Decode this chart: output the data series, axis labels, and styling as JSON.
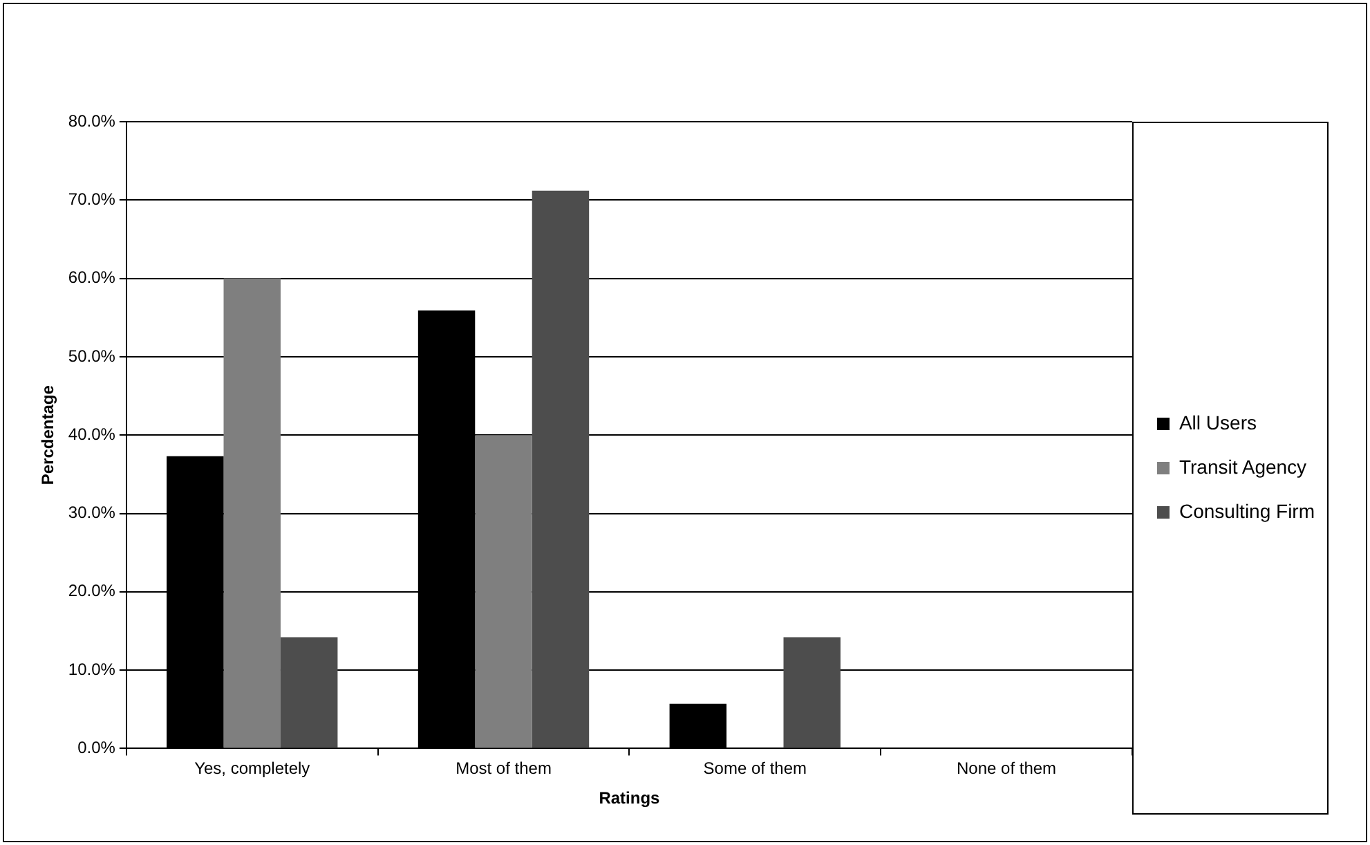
{
  "chart_data": {
    "type": "bar",
    "xlabel": "Ratings",
    "ylabel": "Percdentage",
    "categories": [
      "Yes, completely",
      "Most of them",
      "Some of them",
      "None of them"
    ],
    "series": [
      {
        "name": "All Users",
        "color": "#000000",
        "values": [
          37.3,
          55.9,
          5.7,
          0
        ]
      },
      {
        "name": "Transit Agency",
        "color": "#7f7f7f",
        "values": [
          60.0,
          40.0,
          0,
          0
        ]
      },
      {
        "name": "Consulting Firm",
        "color": "#4d4d4d",
        "values": [
          14.2,
          71.2,
          14.2,
          0
        ]
      }
    ],
    "ylim": [
      0,
      80
    ],
    "yticks": [
      {
        "value": 0,
        "label": "0.0%"
      },
      {
        "value": 10,
        "label": "10.0%"
      },
      {
        "value": 20,
        "label": "20.0%"
      },
      {
        "value": 30,
        "label": "30.0%"
      },
      {
        "value": 40,
        "label": "40.0%"
      },
      {
        "value": 50,
        "label": "50.0%"
      },
      {
        "value": 60,
        "label": "60.0%"
      },
      {
        "value": 70,
        "label": "70.0%"
      },
      {
        "value": 80,
        "label": "80.0%"
      }
    ],
    "grid": "y",
    "legend": "right"
  }
}
